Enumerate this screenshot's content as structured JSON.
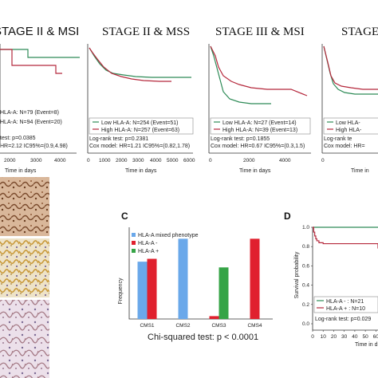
{
  "colors": {
    "green": "#2e8b57",
    "red": "#b5283c",
    "blue": "#6aa8ea",
    "bright_red": "#e0202e",
    "bright_green": "#36a447"
  },
  "km_panels": [
    {
      "title": "STAGE II & MSI",
      "legend": [
        "HLA-A: N=79 (Event=8)",
        "HLA-A: N=94 (Event=20)"
      ],
      "stats": [
        "test: p=0.0385",
        "HR=2.12 IC95%=(0.9,4.98)"
      ],
      "xticks": [
        "2000",
        "3000",
        "4000"
      ],
      "xlabel": "Time in days"
    },
    {
      "title": "STAGE II & MSS",
      "legend": [
        "Low HLA-A: N=254 (Event=51)",
        "High HLA-A: N=257 (Event=63)"
      ],
      "stats": [
        "Log-rank test: p=0.2381",
        "Cox model: HR=1.21 IC95%=(0.82,1.78)"
      ],
      "xticks": [
        "0",
        "1000",
        "2000",
        "3000",
        "4000",
        "5000",
        "6000"
      ],
      "xlabel": "Time in days"
    },
    {
      "title": "STAGE III & MSI",
      "legend": [
        "Low HLA-A: N=27 (Event=14)",
        "High HLA-A: N=39 (Event=13)"
      ],
      "stats": [
        "Log-rank test: p=0.1855",
        "Cox model: HR=0.67 IC95%=(0.3,1.5)"
      ],
      "xticks": [
        "0",
        "2000",
        "4000"
      ],
      "xlabel": "Time in days"
    },
    {
      "title": "STAGE I",
      "legend": [
        "Low HLA-",
        "High HLA-"
      ],
      "stats": [
        "Log-rank te",
        "Cox model: HR="
      ],
      "xticks": [
        "0"
      ],
      "xlabel": "Time in"
    }
  ],
  "panel_c": {
    "letter": "C",
    "ylabel": "Frequency",
    "caption": "Chi-squared test: p < 0.0001",
    "legend": [
      "HLA-A mixed phenotype",
      "HLA-A -",
      "HLA-A +"
    ]
  },
  "panel_d": {
    "letter": "D",
    "ylabel": "Survival probability",
    "yticks": [
      "0.0",
      "0.2",
      "0.4",
      "0.6",
      "0.8",
      "1.0"
    ],
    "xticks": [
      "0",
      "10",
      "20",
      "30",
      "40",
      "50",
      "60"
    ],
    "xlabel": "Time in d",
    "legend": [
      "HLA-A - : N=21",
      "HLA-A + : N=10"
    ],
    "stats": "Log-rank test: p=0.029"
  },
  "chart_data": [
    {
      "type": "bar",
      "categories": [
        "CMS1",
        "CMS2",
        "CMS3",
        "CMS4"
      ],
      "series": [
        {
          "name": "HLA-A mixed phenotype",
          "values": [
            20,
            28,
            0,
            0
          ]
        },
        {
          "name": "HLA-A -",
          "values": [
            21,
            0,
            1,
            28
          ]
        },
        {
          "name": "HLA-A +",
          "values": [
            0,
            0,
            18,
            0
          ]
        }
      ],
      "ylim": [
        0,
        32
      ],
      "grid": false,
      "legend": "top-left"
    },
    {
      "type": "line",
      "series": [
        {
          "name": "HLA-A -",
          "x": [
            0,
            6,
            70
          ],
          "y": [
            1.0,
            1.0,
            1.0
          ]
        },
        {
          "name": "HLA-A +",
          "x": [
            0,
            1,
            2,
            3,
            4,
            6,
            10,
            20,
            30,
            40,
            50,
            60,
            65,
            70
          ],
          "y": [
            1.0,
            0.95,
            0.91,
            0.88,
            0.86,
            0.84,
            0.83,
            0.83,
            0.83,
            0.83,
            0.83,
            0.83,
            0.78,
            0.78
          ]
        }
      ],
      "xlim": [
        0,
        70
      ],
      "ylim": [
        0,
        1
      ],
      "grid": false
    }
  ]
}
